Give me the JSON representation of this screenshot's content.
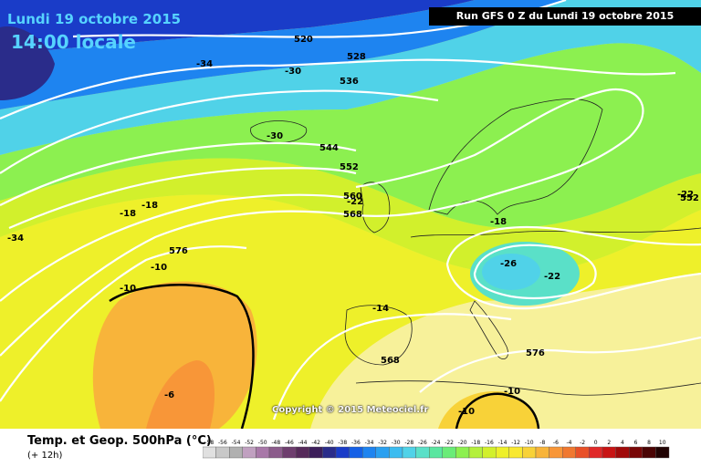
{
  "header": {
    "date_line": "Lundi 19 octobre 2015",
    "time_line": "14:00 locale",
    "run_info": "Run GFS 0 Z du Lundi 19 octobre 2015"
  },
  "map": {
    "copyright": "Copyright © 2015 Meteociel.fr",
    "geopotential_labels": [
      "520",
      "528",
      "536",
      "544",
      "552",
      "560",
      "568",
      "576",
      "568",
      "576",
      "552"
    ],
    "temperature_labels": [
      "-34",
      "-30",
      "-30",
      "-34",
      "-18",
      "-18",
      "-10",
      "-10",
      "-22",
      "-18",
      "-26",
      "-22",
      "-14",
      "-6",
      "-10",
      "-10",
      "-22"
    ]
  },
  "footer": {
    "title": "Temp. et Geop. 500hPa (°C)",
    "subtitle": "(+ 12h)",
    "scale_labels": [
      "-58",
      "-56",
      "-54",
      "-52",
      "-50",
      "-48",
      "-46",
      "-44",
      "-42",
      "-40",
      "-38",
      "-36",
      "-34",
      "-32",
      "-30",
      "-28",
      "-26",
      "-24",
      "-22",
      "-20",
      "-18",
      "-16",
      "-14",
      "-12",
      "-10",
      "-8",
      "-6",
      "-4",
      "-2",
      "0",
      "2",
      "4",
      "6",
      "8",
      "10"
    ],
    "scale_colors": [
      "#e0e0e0",
      "#c8c8c8",
      "#b0b0b0",
      "#c0a0c0",
      "#a878a8",
      "#8c5c8c",
      "#6e3e6e",
      "#562a5a",
      "#3c1e5a",
      "#2a2c8a",
      "#1a3cc8",
      "#1560e6",
      "#1e84f0",
      "#2aa0f0",
      "#3cbcf0",
      "#50d2e8",
      "#5ae0c8",
      "#5ae6a0",
      "#6aec78",
      "#8cf050",
      "#b4f03c",
      "#d2f02c",
      "#eef02a",
      "#f8e830",
      "#f8d238",
      "#f8b43a",
      "#f89638",
      "#f07830",
      "#e85028",
      "#e02828",
      "#c81414",
      "#a00a0a",
      "#780606",
      "#4a0404",
      "#200202"
    ]
  }
}
